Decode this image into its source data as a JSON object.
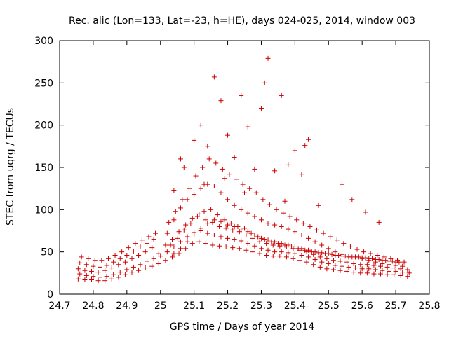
{
  "chart_data": {
    "type": "scatter",
    "title": "Rec. alic (Lon=133, Lat=-23, h=HE), days 024-025, 2014, window 003",
    "xlabel": "GPS time / Days of year 2014",
    "ylabel": "STEC from uqrg / TECUs",
    "xlim": [
      24.7,
      25.8
    ],
    "ylim": [
      0,
      300
    ],
    "xticks": [
      "24.7",
      "24.8",
      "24.9",
      "25",
      "25.1",
      "25.2",
      "25.3",
      "25.4",
      "25.5",
      "25.6",
      "25.7",
      "25.8"
    ],
    "yticks": [
      "0",
      "50",
      "100",
      "150",
      "200",
      "250",
      "300"
    ],
    "grid": false,
    "legend": "none",
    "marker": "plus",
    "color": "#cc0000",
    "series": [
      {
        "x": [
          24.755,
          24.775,
          24.795,
          24.815,
          24.835,
          24.855,
          24.875,
          24.895,
          24.915,
          24.935,
          24.955,
          24.975,
          24.995,
          25.015,
          25.035,
          25.055,
          25.075,
          25.095,
          25.115,
          25.135,
          25.155,
          25.175,
          25.195,
          25.215,
          25.235,
          25.255,
          25.275,
          25.295,
          25.315,
          25.335,
          25.355,
          25.375,
          25.395,
          25.415,
          25.435,
          25.455,
          25.475,
          25.495,
          25.515,
          25.535,
          25.555,
          25.575,
          25.595,
          25.615,
          25.635,
          25.655,
          25.675,
          25.695,
          25.715,
          25.735
        ],
        "y": [
          18,
          17,
          17,
          16,
          16,
          18,
          20,
          23,
          26,
          28,
          31,
          33,
          36,
          40,
          44,
          48,
          54,
          60,
          62,
          60,
          58,
          57,
          56,
          55,
          54,
          52,
          50,
          48,
          46,
          45,
          45,
          44,
          42,
          40,
          38,
          35,
          32,
          30,
          29,
          28,
          27,
          26,
          25,
          25,
          24,
          24,
          23,
          23,
          22,
          21
        ]
      },
      {
        "x": [
          24.76,
          24.78,
          24.8,
          24.82,
          24.84,
          24.86,
          24.88,
          24.9,
          24.92,
          24.94,
          24.96,
          24.98,
          25.0,
          25.02,
          25.04,
          25.06,
          25.08,
          25.1,
          25.12,
          25.14,
          25.16,
          25.18,
          25.2,
          25.22,
          25.24,
          25.26,
          25.28,
          25.3,
          25.32,
          25.34,
          25.36,
          25.38,
          25.4,
          25.42,
          25.44,
          25.46,
          25.48,
          25.5,
          25.52,
          25.54,
          25.56,
          25.58,
          25.6,
          25.62,
          25.64,
          25.66,
          25.68,
          25.7,
          25.72,
          25.74
        ],
        "y": [
          24,
          22,
          21,
          20,
          21,
          23,
          26,
          29,
          32,
          35,
          39,
          42,
          45,
          50,
          56,
          62,
          68,
          73,
          75,
          72,
          70,
          68,
          66,
          65,
          63,
          60,
          57,
          54,
          52,
          50,
          50,
          49,
          48,
          46,
          44,
          41,
          38,
          36,
          34,
          33,
          32,
          31,
          30,
          30,
          29,
          28,
          27,
          27,
          26,
          25
        ]
      },
      {
        "x": [
          24.755,
          24.775,
          24.795,
          24.815,
          24.835,
          24.855,
          24.875,
          24.895,
          24.915,
          24.935,
          24.955,
          24.975,
          24.995,
          25.015,
          25.035,
          25.055,
          25.075,
          25.095,
          25.115,
          25.135,
          25.155,
          25.175,
          25.195,
          25.215,
          25.235,
          25.255,
          25.275,
          25.295,
          25.315,
          25.335,
          25.355,
          25.375,
          25.395,
          25.415,
          25.435,
          25.455,
          25.475,
          25.495,
          25.515,
          25.535,
          25.555,
          25.575,
          25.595,
          25.615,
          25.635,
          25.655,
          25.675,
          25.695,
          25.715,
          25.735
        ],
        "y": [
          30,
          28,
          27,
          26,
          28,
          31,
          35,
          38,
          42,
          46,
          50,
          55,
          48,
          58,
          65,
          74,
          82,
          90,
          95,
          88,
          85,
          80,
          78,
          76,
          74,
          70,
          66,
          62,
          60,
          58,
          57,
          56,
          54,
          52,
          50,
          47,
          44,
          42,
          40,
          39,
          38,
          36,
          35,
          35,
          34,
          33,
          32,
          31,
          30,
          29
        ]
      },
      {
        "x": [
          24.76,
          24.78,
          24.8,
          24.82,
          24.84,
          24.86,
          24.88,
          24.9,
          24.92,
          24.94,
          24.96,
          24.98,
          25.02,
          25.04,
          25.06,
          25.08,
          25.1,
          25.12,
          25.14,
          25.16,
          25.18,
          25.2,
          25.22,
          25.24,
          25.26,
          25.28,
          25.3,
          25.32,
          25.34,
          25.36,
          25.38,
          25.4,
          25.42,
          25.44,
          25.46,
          25.48,
          25.5,
          25.52,
          25.54,
          25.56,
          25.58,
          25.6,
          25.62,
          25.64,
          25.66,
          25.68,
          25.7,
          25.72
        ],
        "y": [
          37,
          35,
          33,
          32,
          34,
          38,
          42,
          46,
          51,
          56,
          60,
          65,
          72,
          88,
          102,
          112,
          118,
          125,
          130,
          128,
          120,
          112,
          105,
          100,
          96,
          92,
          88,
          84,
          82,
          80,
          77,
          74,
          70,
          66,
          62,
          58,
          54,
          50,
          47,
          45,
          44,
          42,
          40,
          38,
          36,
          35,
          34,
          33
        ]
      },
      {
        "x": [
          24.765,
          24.785,
          24.805,
          24.825,
          24.845,
          24.865,
          24.885,
          24.905,
          24.925,
          24.945,
          24.965,
          24.985,
          25.025,
          25.045,
          25.065,
          25.085,
          25.105,
          25.125,
          25.145,
          25.165,
          25.185,
          25.205,
          25.225,
          25.245,
          25.265,
          25.285,
          25.305,
          25.325,
          25.345,
          25.365,
          25.385,
          25.405,
          25.425,
          25.445,
          25.465,
          25.485,
          25.505,
          25.525,
          25.545,
          25.565,
          25.585,
          25.605,
          25.625,
          25.645,
          25.665,
          25.685,
          25.705,
          25.725
        ],
        "y": [
          44,
          42,
          40,
          40,
          42,
          46,
          50,
          55,
          60,
          64,
          68,
          72,
          85,
          98,
          112,
          125,
          140,
          150,
          160,
          155,
          148,
          142,
          136,
          130,
          125,
          120,
          112,
          106,
          100,
          96,
          92,
          88,
          84,
          80,
          76,
          72,
          68,
          64,
          60,
          56,
          53,
          50,
          48,
          46,
          44,
          42,
          40,
          38
        ]
      },
      {
        "x": [
          25.04,
          25.07,
          25.1,
          25.12,
          25.14,
          25.16,
          25.18,
          25.2,
          25.22,
          25.24,
          25.26,
          25.28,
          25.3,
          25.32,
          25.34,
          25.36,
          25.38,
          25.4,
          25.42,
          25.44
        ],
        "y": [
          123,
          150,
          182,
          200,
          175,
          257,
          229,
          188,
          162,
          235,
          198,
          148,
          220,
          279,
          146,
          235,
          153,
          170,
          142,
          183
        ]
      },
      {
        "x": [
          25.06,
          25.13,
          25.19,
          25.25,
          25.31,
          25.37,
          25.43,
          25.47,
          25.54,
          25.57,
          25.61,
          25.65
        ],
        "y": [
          160,
          130,
          137,
          120,
          250,
          110,
          176,
          105,
          130,
          112,
          97,
          85
        ]
      },
      {
        "x": [
          25.03,
          25.05,
          25.07,
          25.09,
          25.11,
          25.13,
          25.15,
          25.17,
          25.19,
          25.21,
          25.23,
          25.25,
          25.27,
          25.29,
          25.31,
          25.33,
          25.35,
          25.37,
          25.39,
          25.41,
          25.43,
          25.45,
          25.47,
          25.49,
          25.51,
          25.53,
          25.55,
          25.57,
          25.59,
          25.61,
          25.63,
          25.65,
          25.67,
          25.69,
          25.71
        ],
        "y": [
          58,
          66,
          76,
          84,
          92,
          98,
          100,
          94,
          88,
          84,
          80,
          78,
          72,
          68,
          65,
          62,
          60,
          58,
          56,
          54,
          52,
          50,
          49,
          48,
          47,
          46,
          45,
          44,
          44,
          43,
          42,
          41,
          40,
          39,
          38
        ]
      },
      {
        "x": [
          25.04,
          25.06,
          25.08,
          25.1,
          25.12,
          25.14,
          25.16,
          25.18,
          25.2,
          25.22,
          25.24,
          25.26,
          25.28,
          25.3,
          25.32,
          25.34,
          25.36,
          25.38,
          25.4,
          25.42,
          25.44,
          25.46,
          25.48,
          25.5,
          25.52,
          25.54,
          25.56,
          25.58,
          25.6,
          25.62,
          25.64,
          25.66,
          25.68,
          25.7
        ],
        "y": [
          48,
          54,
          62,
          70,
          78,
          84,
          88,
          86,
          82,
          80,
          76,
          74,
          70,
          66,
          64,
          62,
          60,
          58,
          56,
          54,
          52,
          50,
          49,
          48,
          46,
          45,
          44,
          44,
          43,
          42,
          41,
          40,
          39,
          38
        ]
      }
    ]
  }
}
